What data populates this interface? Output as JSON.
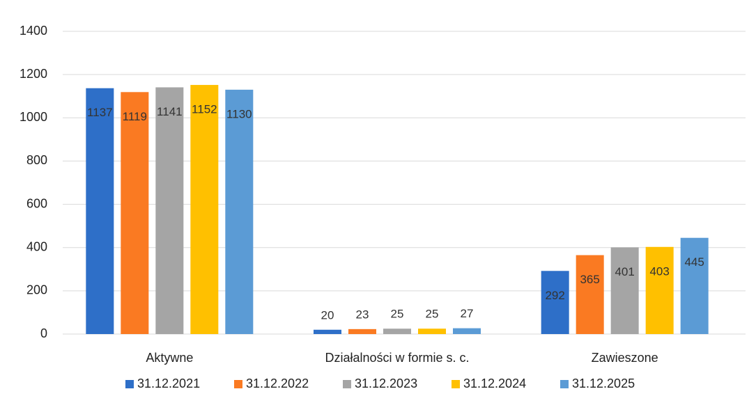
{
  "chart_data": {
    "type": "bar",
    "categories": [
      "Aktywne",
      "Działalności w formie s. c.",
      "Zawieszone"
    ],
    "series": [
      {
        "name": "31.12.2021",
        "color": "#2e6fc8",
        "values": [
          1137,
          20,
          292
        ]
      },
      {
        "name": "31.12.2022",
        "color": "#fa7a22",
        "values": [
          1119,
          23,
          365
        ]
      },
      {
        "name": "31.12.2023",
        "color": "#a5a5a5",
        "values": [
          1141,
          25,
          401
        ]
      },
      {
        "name": "31.12.2024",
        "color": "#ffc000",
        "values": [
          1152,
          25,
          403
        ]
      },
      {
        "name": "31.12.2025",
        "color": "#5b9bd5",
        "values": [
          1130,
          27,
          445
        ]
      }
    ],
    "ylim": [
      0,
      1400
    ],
    "yticks": [
      0,
      200,
      400,
      600,
      800,
      1000,
      1200,
      1400
    ],
    "grid": true,
    "legend": "bottom"
  }
}
